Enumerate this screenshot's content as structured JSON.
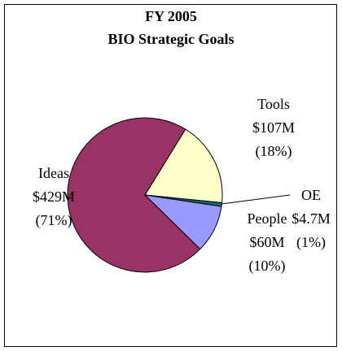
{
  "chart_data": {
    "type": "pie",
    "title": "FY 2005",
    "subtitle": "BIO Strategic Goals",
    "categories": [
      "Tools",
      "OE",
      "People",
      "Ideas"
    ],
    "values": [
      107,
      4.7,
      60,
      429
    ],
    "value_labels": [
      "$107M",
      "$4.7M",
      "$60M",
      "$429M"
    ],
    "percent_labels": [
      "(18%)",
      "(1%)",
      "(10%)",
      "(71%)"
    ],
    "colors": [
      "#ffffcc",
      "#0f6e6e",
      "#9999ff",
      "#993366"
    ]
  }
}
